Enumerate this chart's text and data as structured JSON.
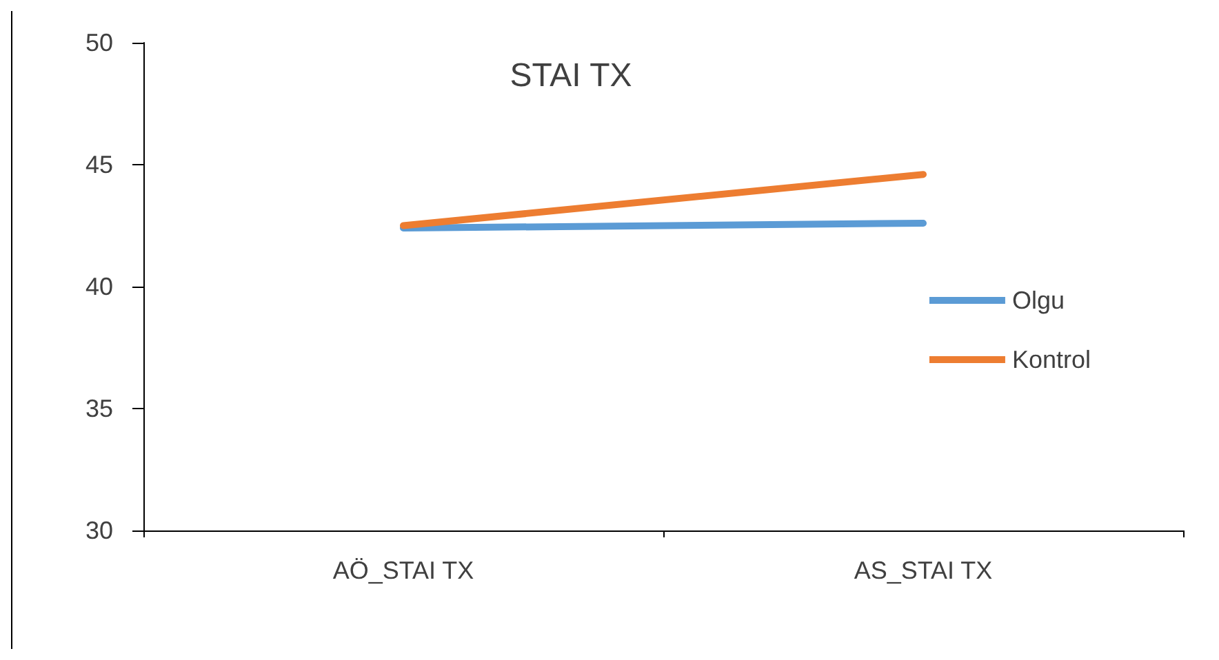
{
  "chart_data": {
    "type": "line",
    "title": "STAI TX",
    "categories": [
      "AÖ_STAI TX",
      "AS_STAI TX"
    ],
    "series": [
      {
        "name": "Olgu",
        "color": "#5b9bd5",
        "values": [
          42.4,
          42.6
        ]
      },
      {
        "name": "Kontrol",
        "color": "#ed7d31",
        "values": [
          42.5,
          44.6
        ]
      }
    ],
    "ylim": [
      30,
      50
    ],
    "yticks": [
      30,
      35,
      40,
      45,
      50
    ],
    "grid": false,
    "legend": "right",
    "marker": "none",
    "line_style": "solid"
  }
}
